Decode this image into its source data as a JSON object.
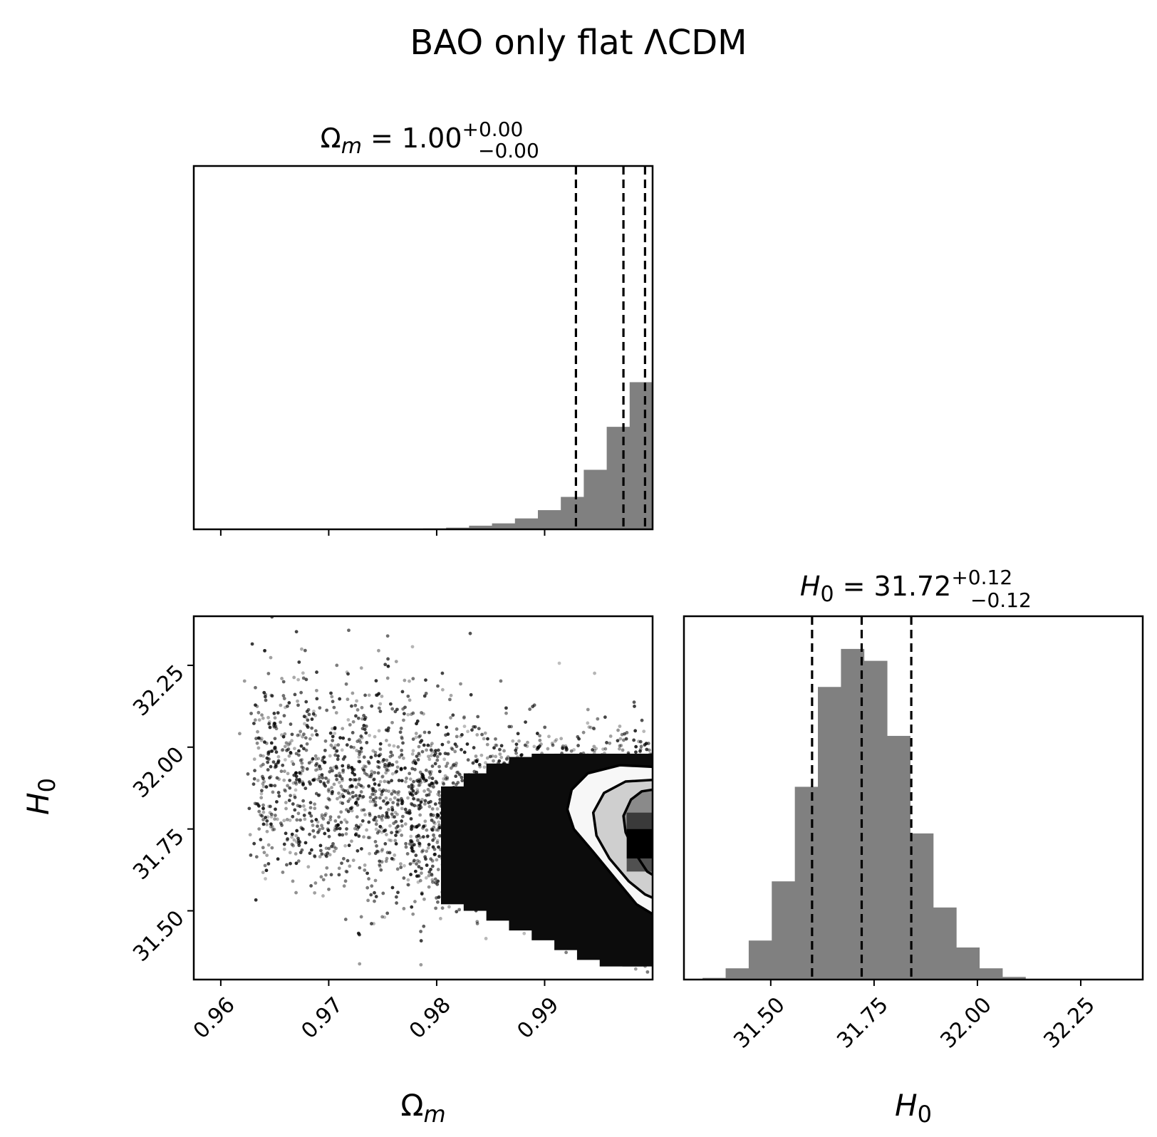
{
  "figure": {
    "title": "BAO only flat ΛCDM"
  },
  "chart_data": [
    {
      "type": "bar",
      "panel": "marginal-omega-m",
      "param_symbol": "Ω",
      "param_sub": "m",
      "title_value": "1.00",
      "title_plus": "+0.00",
      "title_minus": "−0.00",
      "xlim": [
        0.9575,
        1.0
      ],
      "bin_edges": [
        0.9575,
        0.959625,
        0.96175,
        0.963875,
        0.966,
        0.968125,
        0.97025,
        0.972375,
        0.9745,
        0.976625,
        0.97875,
        0.980875,
        0.983,
        0.985125,
        0.98725,
        0.989375,
        0.9915,
        0.993625,
        0.99575,
        0.997875,
        1.0
      ],
      "values": [
        0,
        0,
        0,
        0,
        0,
        0,
        0,
        0,
        0.0005,
        0.001,
        0.0025,
        0.005,
        0.011,
        0.018,
        0.033,
        0.058,
        0.098,
        0.18,
        0.31,
        0.445,
        1.0
      ],
      "quantiles": [
        0.9929,
        0.9973,
        0.9993
      ],
      "xticks": [
        0.96,
        0.97,
        0.98,
        0.99
      ],
      "xlabel_symbol": "Ω",
      "xlabel_sub": "m",
      "y_ticks_shown": false
    },
    {
      "type": "scatter",
      "panel": "joint-omega-m-h0",
      "xlim": [
        0.9575,
        1.0
      ],
      "ylim": [
        31.29,
        32.4
      ],
      "xticks": [
        0.96,
        0.97,
        0.98,
        0.99
      ],
      "xtick_labels": [
        "0.96",
        "0.97",
        "0.98",
        "0.99"
      ],
      "yticks": [
        31.5,
        31.75,
        32.0,
        32.25
      ],
      "ytick_labels": [
        "31.50",
        "31.75",
        "32.00",
        "32.25"
      ],
      "xlabel_symbol": "Ω",
      "xlabel_sub": "m",
      "ylabel_symbol": "H",
      "ylabel_sub": "0",
      "contour_levels": [
        "39%",
        "86%",
        "99%"
      ],
      "contours": [
        [
          [
            1.0,
            31.94
          ],
          [
            0.997,
            31.945
          ],
          [
            0.994,
            31.92
          ],
          [
            0.9925,
            31.87
          ],
          [
            0.9921,
            31.81
          ],
          [
            0.9927,
            31.75
          ],
          [
            0.9945,
            31.68
          ],
          [
            0.9965,
            31.6
          ],
          [
            0.9985,
            31.52
          ],
          [
            1.0,
            31.49
          ]
        ],
        [
          [
            1.0,
            31.9
          ],
          [
            0.9975,
            31.895
          ],
          [
            0.9955,
            31.86
          ],
          [
            0.9945,
            31.8
          ],
          [
            0.9948,
            31.73
          ],
          [
            0.996,
            31.66
          ],
          [
            0.9978,
            31.59
          ],
          [
            0.9993,
            31.55
          ],
          [
            1.0,
            31.54
          ]
        ],
        [
          [
            1.0,
            31.87
          ],
          [
            0.999,
            31.865
          ],
          [
            0.998,
            31.84
          ],
          [
            0.9973,
            31.79
          ],
          [
            0.9975,
            31.74
          ],
          [
            0.9985,
            31.67
          ],
          [
            0.9995,
            31.62
          ],
          [
            1.0,
            31.61
          ]
        ]
      ]
    },
    {
      "type": "bar",
      "panel": "marginal-h0",
      "param_symbol": "H",
      "param_sub": "0",
      "title_value": "31.72",
      "title_plus": "+0.12",
      "title_minus": "−0.12",
      "xlim": [
        31.29,
        32.4
      ],
      "bin_edges": [
        31.3351,
        31.3909,
        31.4467,
        31.5025,
        31.5583,
        31.6141,
        31.6699,
        31.7257,
        31.7815,
        31.8373,
        31.8931,
        31.9489,
        32.0047,
        32.0605,
        32.1163,
        32.1721
      ],
      "values": [
        0.005,
        0.034,
        0.118,
        0.297,
        0.583,
        0.885,
        1.0,
        0.964,
        0.737,
        0.442,
        0.218,
        0.097,
        0.034,
        0.008,
        0.0
      ],
      "quantiles": [
        31.6,
        31.72,
        31.84
      ],
      "xticks": [
        31.5,
        31.75,
        32.0,
        32.25
      ],
      "xtick_labels": [
        "31.50",
        "31.75",
        "32.00",
        "32.25"
      ],
      "xlabel_symbol": "H",
      "xlabel_sub": "0",
      "y_ticks_shown": false
    }
  ]
}
